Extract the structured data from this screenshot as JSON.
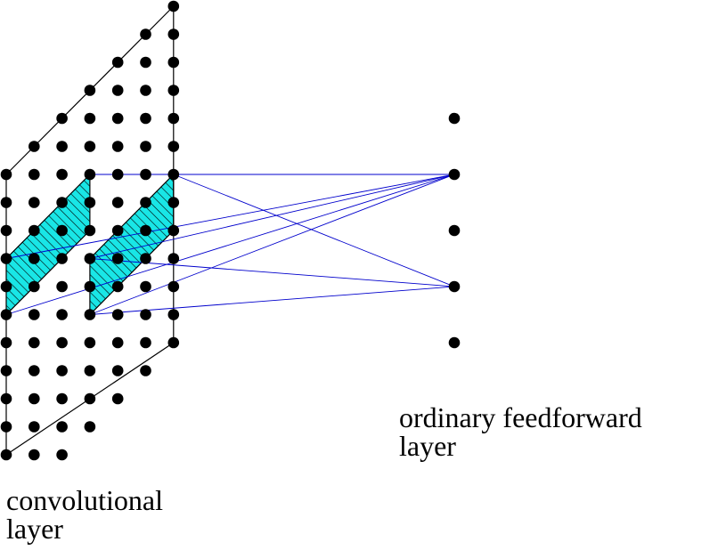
{
  "labels": {
    "convolutional_line1": "convolutional",
    "convolutional_line2": "layer",
    "feedforward_line1": "ordinary feedforward",
    "feedforward_line2": "layer"
  },
  "colors": {
    "node": "#000000",
    "grid_line": "#000000",
    "connection": "#0000cc",
    "patch_fill": "#19e6e6",
    "hatch": "#000000",
    "background": "#ffffff"
  },
  "grid": {
    "rows": 13,
    "columns": 7,
    "description_units": "nodes"
  },
  "feedforward_nodes": 5,
  "patches": [
    {
      "name": "upper-receptive-field",
      "rows": [
        3,
        5
      ],
      "cols": [
        0,
        3
      ],
      "targets": [
        1
      ]
    },
    {
      "name": "lower-receptive-field",
      "rows": [
        6,
        8
      ],
      "cols": [
        3,
        6
      ],
      "targets": [
        1,
        3
      ]
    }
  ],
  "connections": [
    {
      "patch": 0,
      "target": 1
    },
    {
      "patch": 1,
      "target": 3
    },
    {
      "patch": 1,
      "target": 1
    }
  ]
}
